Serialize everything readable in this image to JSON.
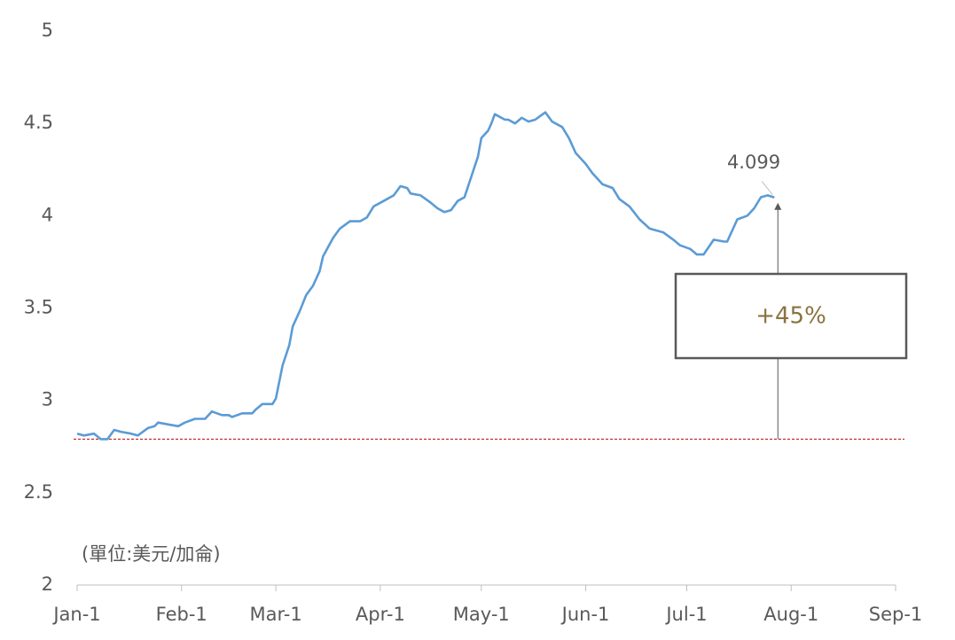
{
  "chart_data": {
    "type": "line",
    "unit_note": "(單位:美元/加侖)",
    "annotation": "+45%",
    "baseline": 2.79,
    "color": "#5b9bd5",
    "x": [
      0,
      2,
      5,
      7,
      9,
      11,
      13,
      16,
      18,
      21,
      23,
      24,
      27,
      30,
      32,
      35,
      38,
      40,
      43,
      45,
      46,
      49,
      52,
      53,
      55,
      58,
      59,
      61,
      63,
      64,
      66,
      68,
      70,
      72,
      73,
      76,
      78,
      81,
      84,
      86,
      88,
      91,
      94,
      96,
      98,
      99,
      102,
      105,
      107,
      109,
      111,
      113,
      115,
      117,
      119,
      120,
      122,
      123,
      124,
      127,
      128,
      130,
      132,
      134,
      136,
      139,
      141,
      144,
      146,
      148,
      151,
      153,
      156,
      159,
      161,
      164,
      167,
      170,
      172,
      174,
      177,
      179,
      182,
      184,
      186,
      189,
      192,
      193,
      196,
      199,
      201,
      203,
      205,
      207
    ],
    "values": [
      2.82,
      2.81,
      2.82,
      2.79,
      2.79,
      2.84,
      2.83,
      2.82,
      2.81,
      2.85,
      2.86,
      2.88,
      2.87,
      2.86,
      2.88,
      2.9,
      2.9,
      2.94,
      2.92,
      2.92,
      2.91,
      2.93,
      2.93,
      2.95,
      2.98,
      2.98,
      3.01,
      3.19,
      3.3,
      3.4,
      3.48,
      3.57,
      3.62,
      3.7,
      3.78,
      3.88,
      3.93,
      3.97,
      3.97,
      3.99,
      4.05,
      4.08,
      4.11,
      4.16,
      4.15,
      4.12,
      4.11,
      4.07,
      4.04,
      4.02,
      4.03,
      4.08,
      4.1,
      4.21,
      4.32,
      4.42,
      4.46,
      4.5,
      4.55,
      4.52,
      4.52,
      4.5,
      4.53,
      4.51,
      4.52,
      4.56,
      4.51,
      4.48,
      4.42,
      4.34,
      4.28,
      4.23,
      4.17,
      4.15,
      4.09,
      4.05,
      3.98,
      3.93,
      3.92,
      3.91,
      3.87,
      3.84,
      3.82,
      3.79,
      3.79,
      3.87,
      3.86,
      3.86,
      3.98,
      4.0,
      4.04,
      4.1,
      4.11,
      4.099
    ],
    "xlim": [
      0,
      243
    ],
    "xticks": [
      {
        "value": 0,
        "label": "Jan-1"
      },
      {
        "value": 31,
        "label": "Feb-1"
      },
      {
        "value": 59,
        "label": "Mar-1"
      },
      {
        "value": 90,
        "label": "Apr-1"
      },
      {
        "value": 120,
        "label": "May-1"
      },
      {
        "value": 151,
        "label": "Jun-1"
      },
      {
        "value": 181,
        "label": "Jul-1"
      },
      {
        "value": 212,
        "label": "Aug-1"
      },
      {
        "value": 243,
        "label": "Sep-1"
      }
    ],
    "ylim": [
      2,
      5
    ],
    "yticks": [
      2,
      2.5,
      3,
      3.5,
      4,
      4.5,
      5
    ]
  }
}
